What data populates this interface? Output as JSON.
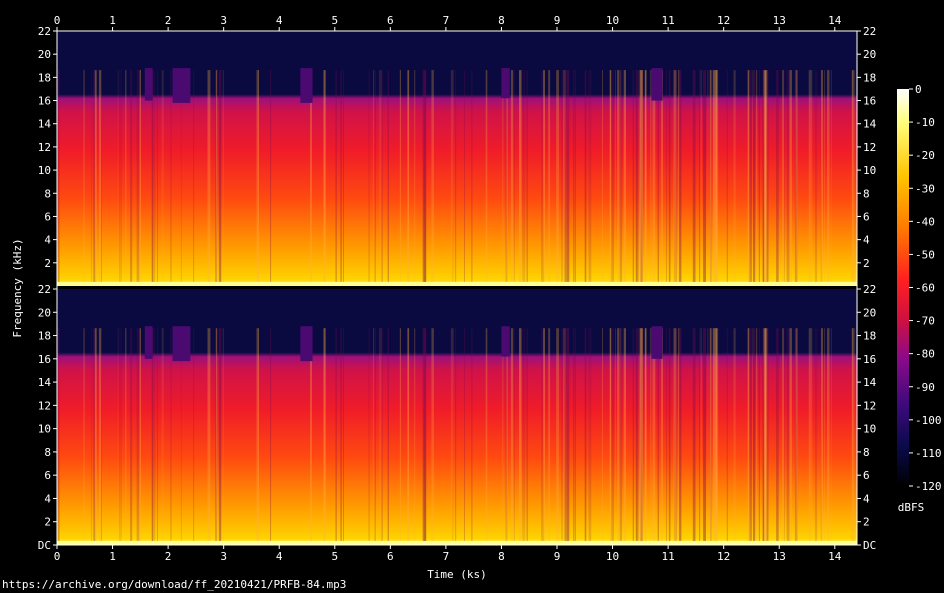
{
  "chart_data": {
    "type": "heatmap",
    "subtype": "spectrogram",
    "xlabel": "Time (ks)",
    "ylabel": "Frequency (kHz)",
    "colorbar_label": "dBFS",
    "x_range": [
      0,
      14.4
    ],
    "x_ticks": [
      "0",
      "1",
      "2",
      "3",
      "4",
      "5",
      "6",
      "7",
      "8",
      "9",
      "10",
      "11",
      "12",
      "13",
      "14"
    ],
    "y_range": [
      0,
      22
    ],
    "y_ticks": [
      "DC",
      "2",
      "4",
      "6",
      "8",
      "10",
      "12",
      "14",
      "16",
      "18",
      "20",
      "22"
    ],
    "colorbar_range": [
      -120,
      0
    ],
    "colorbar_ticks": [
      "0",
      "-10",
      "-20",
      "-30",
      "-40",
      "-50",
      "-60",
      "-70",
      "-80",
      "-90",
      "-100",
      "-110",
      "-120"
    ],
    "channels": 2,
    "cutoff_khz": 18.8,
    "dips": [
      {
        "start": 1.58,
        "end": 1.72,
        "cutoff_khz": 16.0
      },
      {
        "start": 2.08,
        "end": 2.4,
        "cutoff_khz": 15.8
      },
      {
        "start": 4.38,
        "end": 4.6,
        "cutoff_khz": 15.8
      },
      {
        "start": 8.0,
        "end": 8.15,
        "cutoff_khz": 16.2
      },
      {
        "start": 10.7,
        "end": 10.9,
        "cutoff_khz": 16.0
      }
    ],
    "colormap": [
      "#000000",
      "#0a0a4a",
      "#3a0a7a",
      "#8a0a8a",
      "#c8143c",
      "#ff2020",
      "#ff7a00",
      "#ffc400",
      "#ffff90",
      "#ffffff"
    ]
  },
  "footer_text": "https://archive.org/download/ff_20210421/PRFB-84.mp3"
}
